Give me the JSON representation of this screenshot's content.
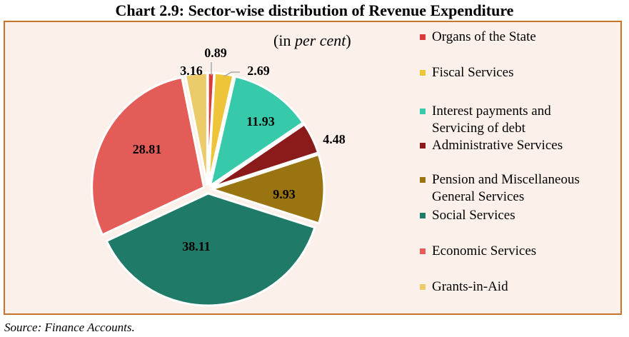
{
  "title": "Chart 2.9: Sector-wise distribution of Revenue Expenditure",
  "unit_prefix": "(in ",
  "unit_emphasis": "per cent",
  "unit_suffix": ")",
  "source": "Source: Finance Accounts.",
  "chart_data": {
    "type": "pie",
    "title": "Chart 2.9: Sector-wise distribution of Revenue Expenditure",
    "unit": "(in per cent)",
    "legend_position": "right",
    "slices": [
      {
        "name": "Organs of the State",
        "value": 0.89,
        "label": "0.89",
        "color": "#d93a3a",
        "legend_lines": [
          "Organs of the State"
        ]
      },
      {
        "name": "Fiscal Services",
        "value": 2.69,
        "label": "2.69",
        "color": "#eec439",
        "legend_lines": [
          "Fiscal Services"
        ]
      },
      {
        "name": "Interest payments and Servicing of debt",
        "value": 11.93,
        "label": "11.93",
        "color": "#36c9aa",
        "legend_lines": [
          "Interest payments and",
          "Servicing of debt"
        ]
      },
      {
        "name": "Administrative Services",
        "value": 4.48,
        "label": "4.48",
        "color": "#8b1a1a",
        "legend_lines": [
          "Administrative Services"
        ]
      },
      {
        "name": "Pension and Miscellaneous General Services",
        "value": 9.93,
        "label": "9.93",
        "color": "#9a7410",
        "legend_lines": [
          "Pension and Miscellaneous",
          "General Services"
        ]
      },
      {
        "name": "Social Services",
        "value": 38.11,
        "label": "38.11",
        "color": "#1f7a67",
        "legend_lines": [
          "Social Services"
        ]
      },
      {
        "name": "Economic Services",
        "value": 28.81,
        "label": "28.81",
        "color": "#e45c57",
        "legend_lines": [
          "Economic Services"
        ]
      },
      {
        "name": "Grants-in-Aid",
        "value": 3.16,
        "label": "3.16",
        "color": "#eccb6a",
        "legend_lines": [
          "Grants-in-Aid"
        ]
      }
    ]
  }
}
